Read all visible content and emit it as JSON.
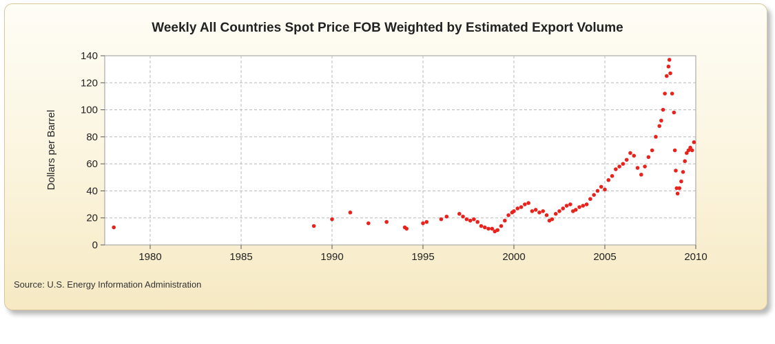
{
  "chart_data": {
    "type": "scatter",
    "title": "Weekly All Countries Spot Price FOB Weighted by Estimated Export Volume",
    "xlabel": "",
    "ylabel": "Dollars per Barrel",
    "xlim": [
      1977.5,
      2010
    ],
    "ylim": [
      0,
      140
    ],
    "x_ticks": [
      1980,
      1985,
      1990,
      1995,
      2000,
      2005,
      2010
    ],
    "y_ticks": [
      0,
      20,
      40,
      60,
      80,
      100,
      120,
      140
    ],
    "grid": true,
    "legend": "none",
    "marker_color": "#e8231d",
    "source": "Source: U.S. Energy Information Administration",
    "series": [
      {
        "x": [
          1978.0,
          1989.0,
          1990.0,
          1991.0,
          1992.0,
          1993.0,
          1994.0,
          1994.1,
          1995.0,
          1995.2,
          1996.0,
          1996.3,
          1997.0,
          1997.2,
          1997.4,
          1997.6,
          1997.8,
          1998.0,
          1998.2,
          1998.4,
          1998.6,
          1998.8,
          1998.95,
          1999.1,
          1999.3,
          1999.5,
          1999.7,
          1999.9,
          2000.0,
          2000.2,
          2000.4,
          2000.6,
          2000.8,
          2001.0,
          2001.2,
          2001.4,
          2001.6,
          2001.8,
          2001.95,
          2002.1,
          2002.3,
          2002.5,
          2002.7,
          2002.9,
          2003.1,
          2003.25,
          2003.4,
          2003.6,
          2003.8,
          2004.0,
          2004.2,
          2004.4,
          2004.6,
          2004.8,
          2005.0,
          2005.2,
          2005.4,
          2005.6,
          2005.8,
          2006.0,
          2006.2,
          2006.4,
          2006.6,
          2006.8,
          2007.0,
          2007.2,
          2007.4,
          2007.6,
          2007.8,
          2008.0,
          2008.1,
          2008.2,
          2008.3,
          2008.4,
          2008.5,
          2008.55,
          2008.6,
          2008.7,
          2008.8,
          2008.85,
          2008.9,
          2008.95,
          2009.0,
          2009.1,
          2009.2,
          2009.3,
          2009.4,
          2009.5,
          2009.6,
          2009.7,
          2009.8,
          2009.9
        ],
        "y": [
          13,
          14,
          19,
          24,
          16,
          17,
          13,
          12,
          16,
          17,
          19,
          21,
          23,
          21,
          19,
          18,
          19,
          17,
          14,
          13,
          12,
          12,
          10,
          11,
          14,
          18,
          22,
          24,
          25,
          27,
          28,
          30,
          31,
          25,
          26,
          24,
          25,
          22,
          18,
          19,
          23,
          25,
          27,
          29,
          30,
          25,
          26,
          28,
          29,
          30,
          34,
          37,
          40,
          43,
          41,
          48,
          51,
          56,
          58,
          60,
          63,
          68,
          66,
          57,
          52,
          58,
          65,
          70,
          80,
          88,
          92,
          100,
          112,
          125,
          132,
          137,
          127,
          112,
          98,
          70,
          55,
          42,
          38,
          42,
          47,
          54,
          62,
          68,
          70,
          72,
          70,
          76
        ]
      }
    ]
  }
}
